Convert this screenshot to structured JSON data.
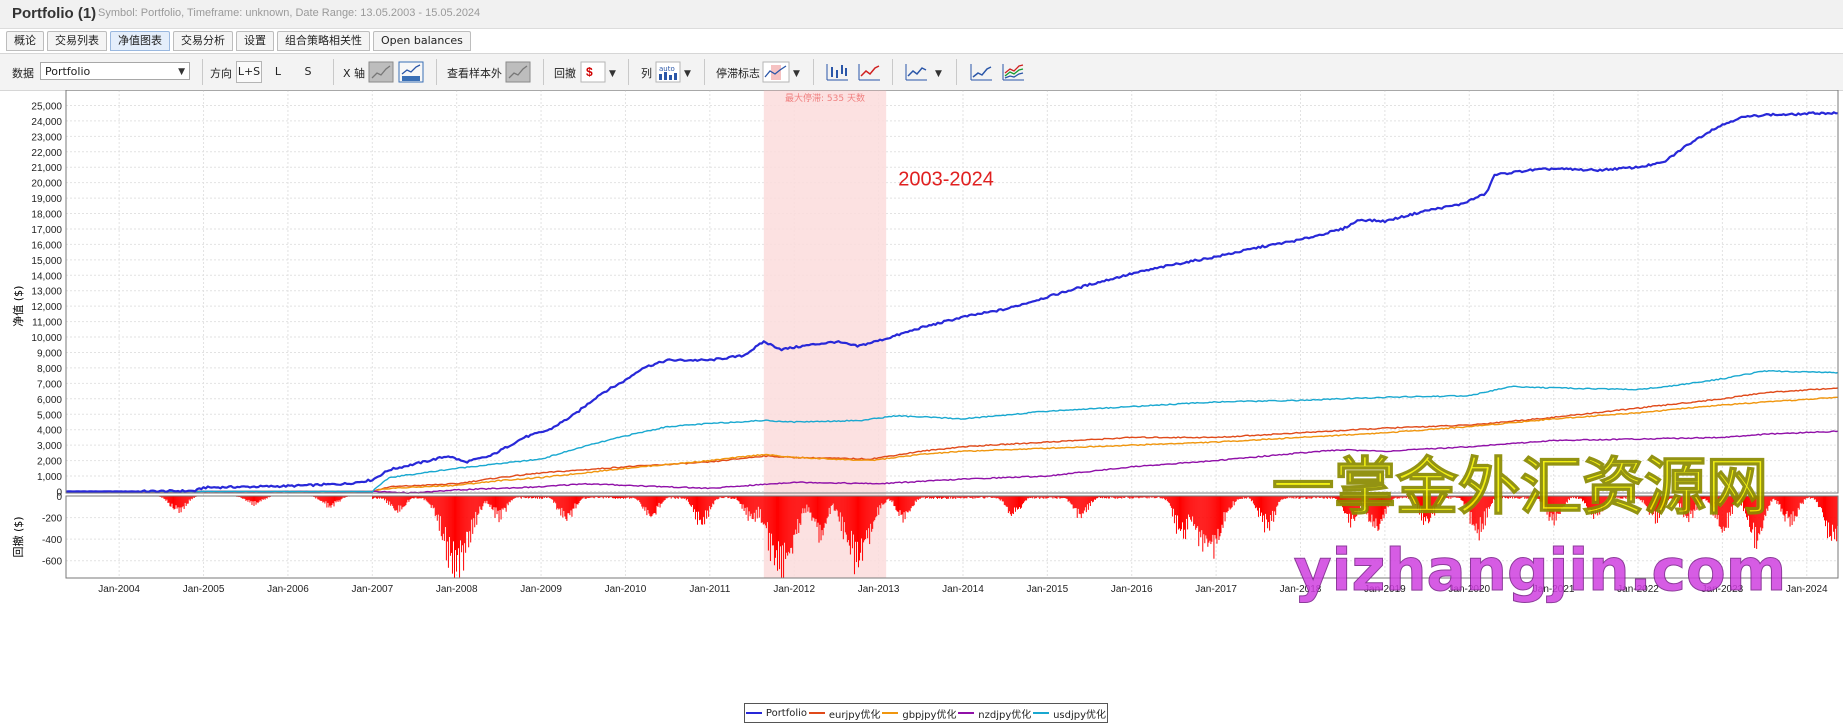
{
  "app": {
    "title": "Portfolio (1)",
    "subtitle": "Symbol: Portfolio, Timeframe: unknown, Date Range: 13.05.2003 - 15.05.2024"
  },
  "tabs": [
    {
      "label": "概论",
      "active": false
    },
    {
      "label": "交易列表",
      "active": false
    },
    {
      "label": "净值图表",
      "active": true
    },
    {
      "label": "交易分析",
      "active": false
    },
    {
      "label": "设置",
      "active": false
    },
    {
      "label": "组合策略相关性",
      "active": false
    },
    {
      "label": "Open balances",
      "active": false
    }
  ],
  "toolbar": {
    "data_label": "数据",
    "data_value": "Portfolio",
    "direction_label": "方向",
    "dir_ls": "L+S",
    "dir_l": "L",
    "dir_s": "S",
    "xaxis_label": "X 轴",
    "oos_label": "查看样本外",
    "drawdown_label": "回撤",
    "column_label": "列",
    "column_auto": "auto",
    "stagnation_label": "停滞标志",
    "drawdown_currency": "$"
  },
  "chart_data": {
    "type": "line",
    "ylabel_top": "净值 ($)",
    "ylabel_bottom": "回撤 ($)",
    "yticks_top": [
      "25,000",
      "24,000",
      "23,000",
      "22,000",
      "21,000",
      "20,000",
      "19,000",
      "18,000",
      "17,000",
      "16,000",
      "15,000",
      "14,000",
      "13,000",
      "12,000",
      "11,000",
      "10,000",
      "9,000",
      "8,000",
      "7,000",
      "6,000",
      "5,000",
      "4,000",
      "3,000",
      "2,000",
      "1,000",
      "0"
    ],
    "yticks_bottom": [
      "0",
      "-200",
      "-400",
      "-600"
    ],
    "ylim_top": [
      -100,
      26000
    ],
    "ylim_bottom": [
      -760,
      0
    ],
    "xlim": [
      2003.37,
      2024.37
    ],
    "xticks": [
      {
        "x": 2004.0,
        "label": "Jan-2004"
      },
      {
        "x": 2005.0,
        "label": "Jan-2005"
      },
      {
        "x": 2006.0,
        "label": "Jan-2006"
      },
      {
        "x": 2007.0,
        "label": "Jan-2007"
      },
      {
        "x": 2008.0,
        "label": "Jan-2008"
      },
      {
        "x": 2009.0,
        "label": "Jan-2009"
      },
      {
        "x": 2010.0,
        "label": "Jan-2010"
      },
      {
        "x": 2011.0,
        "label": "Jan-2011"
      },
      {
        "x": 2012.0,
        "label": "Jan-2012"
      },
      {
        "x": 2013.0,
        "label": "Jan-2013"
      },
      {
        "x": 2014.0,
        "label": "Jan-2014"
      },
      {
        "x": 2015.0,
        "label": "Jan-2015"
      },
      {
        "x": 2016.0,
        "label": "Jan-2016"
      },
      {
        "x": 2017.0,
        "label": "Jan-2017"
      },
      {
        "x": 2018.0,
        "label": "Jan-2018"
      },
      {
        "x": 2019.0,
        "label": "Jan-2019"
      },
      {
        "x": 2020.0,
        "label": "Jan-2020"
      },
      {
        "x": 2021.0,
        "label": "Jan-2021"
      },
      {
        "x": 2022.0,
        "label": "Jan-2022"
      },
      {
        "x": 2023.0,
        "label": "Jan-2023"
      },
      {
        "x": 2024.0,
        "label": "Jan-2024"
      }
    ],
    "grid": true,
    "stagnation": {
      "x_start": 2011.64,
      "x_end": 2013.09,
      "label": "最大停滞: 535 天数",
      "color": "#fcdcdc"
    },
    "annotation": {
      "text": "2003-2024",
      "x": 2013.8,
      "y": 19800,
      "color": "#e02020"
    },
    "watermarks": [
      {
        "text": "一掌金外汇资源网",
        "color": "#f3f000"
      },
      {
        "text": "yizhangjin.com",
        "color": "#d040e0"
      }
    ],
    "series": [
      {
        "name": "Portfolio",
        "color": "#2828d8",
        "width": 2.2,
        "points": [
          [
            2003.37,
            0
          ],
          [
            2004.2,
            0
          ],
          [
            2004.9,
            40
          ],
          [
            2005.0,
            250
          ],
          [
            2006.0,
            350
          ],
          [
            2006.7,
            500
          ],
          [
            2007.0,
            750
          ],
          [
            2007.2,
            1400
          ],
          [
            2007.6,
            1900
          ],
          [
            2007.9,
            2300
          ],
          [
            2008.1,
            1900
          ],
          [
            2008.4,
            2300
          ],
          [
            2008.8,
            3500
          ],
          [
            2009.1,
            4000
          ],
          [
            2009.4,
            5000
          ],
          [
            2009.7,
            6300
          ],
          [
            2010.0,
            7200
          ],
          [
            2010.2,
            8000
          ],
          [
            2010.5,
            8500
          ],
          [
            2011.0,
            8500
          ],
          [
            2011.4,
            8800
          ],
          [
            2011.64,
            9700
          ],
          [
            2011.85,
            9200
          ],
          [
            2012.2,
            9500
          ],
          [
            2012.5,
            9700
          ],
          [
            2012.75,
            9400
          ],
          [
            2013.09,
            9900
          ],
          [
            2013.5,
            10600
          ],
          [
            2014.0,
            11300
          ],
          [
            2014.5,
            11800
          ],
          [
            2015.0,
            12600
          ],
          [
            2015.5,
            13400
          ],
          [
            2016.0,
            14100
          ],
          [
            2016.5,
            14700
          ],
          [
            2017.0,
            15200
          ],
          [
            2017.5,
            15800
          ],
          [
            2018.0,
            16300
          ],
          [
            2018.5,
            17000
          ],
          [
            2018.7,
            17600
          ],
          [
            2019.0,
            17500
          ],
          [
            2019.5,
            18200
          ],
          [
            2019.9,
            18600
          ],
          [
            2020.2,
            19300
          ],
          [
            2020.3,
            20500
          ],
          [
            2020.7,
            20800
          ],
          [
            2021.0,
            20900
          ],
          [
            2021.5,
            20800
          ],
          [
            2022.0,
            21000
          ],
          [
            2022.3,
            21300
          ],
          [
            2022.6,
            22500
          ],
          [
            2022.9,
            23500
          ],
          [
            2023.2,
            24200
          ],
          [
            2023.5,
            24400
          ],
          [
            2023.8,
            24400
          ],
          [
            2024.1,
            24500
          ],
          [
            2024.37,
            24500
          ]
        ]
      },
      {
        "name": "eurjpy优化",
        "color": "#e04a1a",
        "width": 1.4,
        "points": [
          [
            2003.37,
            0
          ],
          [
            2007.0,
            0
          ],
          [
            2007.2,
            300
          ],
          [
            2008.0,
            500
          ],
          [
            2008.5,
            900
          ],
          [
            2009.0,
            1200
          ],
          [
            2010.0,
            1600
          ],
          [
            2011.0,
            1900
          ],
          [
            2011.64,
            2300
          ],
          [
            2012.0,
            2200
          ],
          [
            2012.9,
            2100
          ],
          [
            2013.5,
            2600
          ],
          [
            2014.0,
            2900
          ],
          [
            2015.0,
            3200
          ],
          [
            2016.0,
            3500
          ],
          [
            2017.0,
            3500
          ],
          [
            2018.0,
            3800
          ],
          [
            2019.0,
            4100
          ],
          [
            2020.0,
            4300
          ],
          [
            2021.0,
            4800
          ],
          [
            2022.0,
            5400
          ],
          [
            2023.0,
            6000
          ],
          [
            2023.5,
            6400
          ],
          [
            2024.37,
            6700
          ]
        ]
      },
      {
        "name": "gbpjpy优化",
        "color": "#f0960e",
        "width": 1.4,
        "points": [
          [
            2003.37,
            0
          ],
          [
            2007.0,
            0
          ],
          [
            2007.2,
            200
          ],
          [
            2008.0,
            400
          ],
          [
            2008.5,
            700
          ],
          [
            2009.0,
            900
          ],
          [
            2010.0,
            1500
          ],
          [
            2011.0,
            2000
          ],
          [
            2011.64,
            2400
          ],
          [
            2012.0,
            2200
          ],
          [
            2012.9,
            2000
          ],
          [
            2013.5,
            2400
          ],
          [
            2014.0,
            2600
          ],
          [
            2015.0,
            2800
          ],
          [
            2016.0,
            3000
          ],
          [
            2017.0,
            3200
          ],
          [
            2018.0,
            3500
          ],
          [
            2019.0,
            3800
          ],
          [
            2020.0,
            4200
          ],
          [
            2021.0,
            4700
          ],
          [
            2022.0,
            5100
          ],
          [
            2023.0,
            5600
          ],
          [
            2024.37,
            6100
          ]
        ]
      },
      {
        "name": "nzdjpy优化",
        "color": "#9010a8",
        "width": 1.4,
        "points": [
          [
            2003.37,
            0
          ],
          [
            2007.0,
            0
          ],
          [
            2007.5,
            -100
          ],
          [
            2008.0,
            100
          ],
          [
            2008.5,
            200
          ],
          [
            2009.0,
            300
          ],
          [
            2009.5,
            500
          ],
          [
            2010.0,
            400
          ],
          [
            2011.0,
            200
          ],
          [
            2012.0,
            600
          ],
          [
            2013.0,
            500
          ],
          [
            2014.0,
            800
          ],
          [
            2015.0,
            1000
          ],
          [
            2016.0,
            1600
          ],
          [
            2017.0,
            2000
          ],
          [
            2018.0,
            2500
          ],
          [
            2018.5,
            2700
          ],
          [
            2019.0,
            2600
          ],
          [
            2020.0,
            2900
          ],
          [
            2021.0,
            3300
          ],
          [
            2022.0,
            3400
          ],
          [
            2023.0,
            3500
          ],
          [
            2023.5,
            3700
          ],
          [
            2024.37,
            3900
          ]
        ]
      },
      {
        "name": "usdjpy优化",
        "color": "#19a8d0",
        "width": 1.4,
        "points": [
          [
            2003.37,
            0
          ],
          [
            2007.0,
            0
          ],
          [
            2007.2,
            900
          ],
          [
            2008.0,
            1500
          ],
          [
            2009.0,
            2100
          ],
          [
            2009.5,
            2900
          ],
          [
            2010.0,
            3600
          ],
          [
            2010.5,
            4200
          ],
          [
            2011.0,
            4400
          ],
          [
            2011.64,
            4600
          ],
          [
            2012.0,
            4500
          ],
          [
            2012.8,
            4600
          ],
          [
            2013.2,
            4900
          ],
          [
            2014.0,
            4700
          ],
          [
            2015.0,
            5200
          ],
          [
            2016.0,
            5500
          ],
          [
            2017.0,
            5800
          ],
          [
            2018.0,
            5900
          ],
          [
            2019.0,
            6100
          ],
          [
            2020.0,
            6200
          ],
          [
            2020.5,
            6800
          ],
          [
            2021.0,
            6700
          ],
          [
            2022.0,
            6600
          ],
          [
            2022.5,
            6900
          ],
          [
            2023.0,
            7300
          ],
          [
            2023.5,
            7800
          ],
          [
            2024.37,
            7700
          ]
        ]
      }
    ],
    "drawdown": {
      "color": "#ff0000",
      "dips": [
        [
          2004.7,
          -150
        ],
        [
          2005.6,
          -80
        ],
        [
          2006.5,
          -100
        ],
        [
          2007.3,
          -150
        ],
        [
          2007.9,
          -320
        ],
        [
          2008.0,
          -720
        ],
        [
          2008.5,
          -200
        ],
        [
          2009.3,
          -230
        ],
        [
          2010.3,
          -200
        ],
        [
          2010.9,
          -260
        ],
        [
          2011.5,
          -230
        ],
        [
          2011.85,
          -740
        ],
        [
          2012.3,
          -380
        ],
        [
          2012.75,
          -620
        ],
        [
          2013.3,
          -210
        ],
        [
          2014.6,
          -180
        ],
        [
          2015.4,
          -190
        ],
        [
          2016.6,
          -390
        ],
        [
          2016.9,
          -560
        ],
        [
          2017.6,
          -300
        ],
        [
          2018.6,
          -250
        ],
        [
          2018.9,
          -370
        ],
        [
          2019.5,
          -260
        ],
        [
          2020.1,
          -370
        ],
        [
          2021.0,
          -250
        ],
        [
          2021.5,
          -200
        ],
        [
          2022.2,
          -220
        ],
        [
          2022.6,
          -210
        ],
        [
          2023.0,
          -340
        ],
        [
          2023.4,
          -440
        ],
        [
          2023.8,
          -270
        ],
        [
          2024.3,
          -430
        ]
      ]
    },
    "legend": {
      "position": "bottom-center"
    }
  }
}
